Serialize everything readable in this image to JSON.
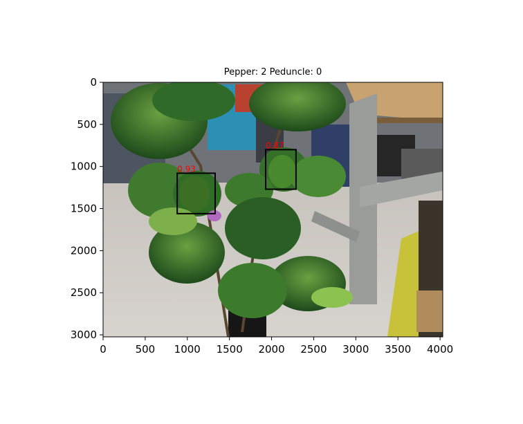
{
  "title": "Pepper: 2 Peduncle: 0",
  "image": {
    "width": 4032,
    "height": 3024,
    "description_colors": {
      "floor": "#cfcac5",
      "foliage_dark": "#1f4a1c",
      "foliage_mid": "#3f7a2e",
      "foliage_light": "#7db04a",
      "metal_frame": "#9a9c9a",
      "background_equipment": "#5b6a78",
      "cyan_machine": "#2c8fb4",
      "wood": "#c9a36f",
      "yellow_wood": "#c8c23a"
    }
  },
  "axes": {
    "x_ticks": [
      "0",
      "500",
      "1000",
      "1500",
      "2000",
      "2500",
      "3000",
      "3500",
      "4000"
    ],
    "x_tick_values": [
      0,
      500,
      1000,
      1500,
      2000,
      2500,
      3000,
      3500,
      4000
    ],
    "y_ticks": [
      "0",
      "500",
      "1000",
      "1500",
      "2000",
      "2500",
      "3000"
    ],
    "y_tick_values": [
      0,
      500,
      1000,
      1500,
      2000,
      2500,
      3000
    ]
  },
  "detections": [
    {
      "label": "0.93",
      "x1": 880,
      "y1": 1080,
      "x2": 1330,
      "y2": 1560,
      "color": "#000000"
    },
    {
      "label": "0.87",
      "x1": 1930,
      "y1": 800,
      "x2": 2290,
      "y2": 1270,
      "color": "#000000"
    }
  ]
}
